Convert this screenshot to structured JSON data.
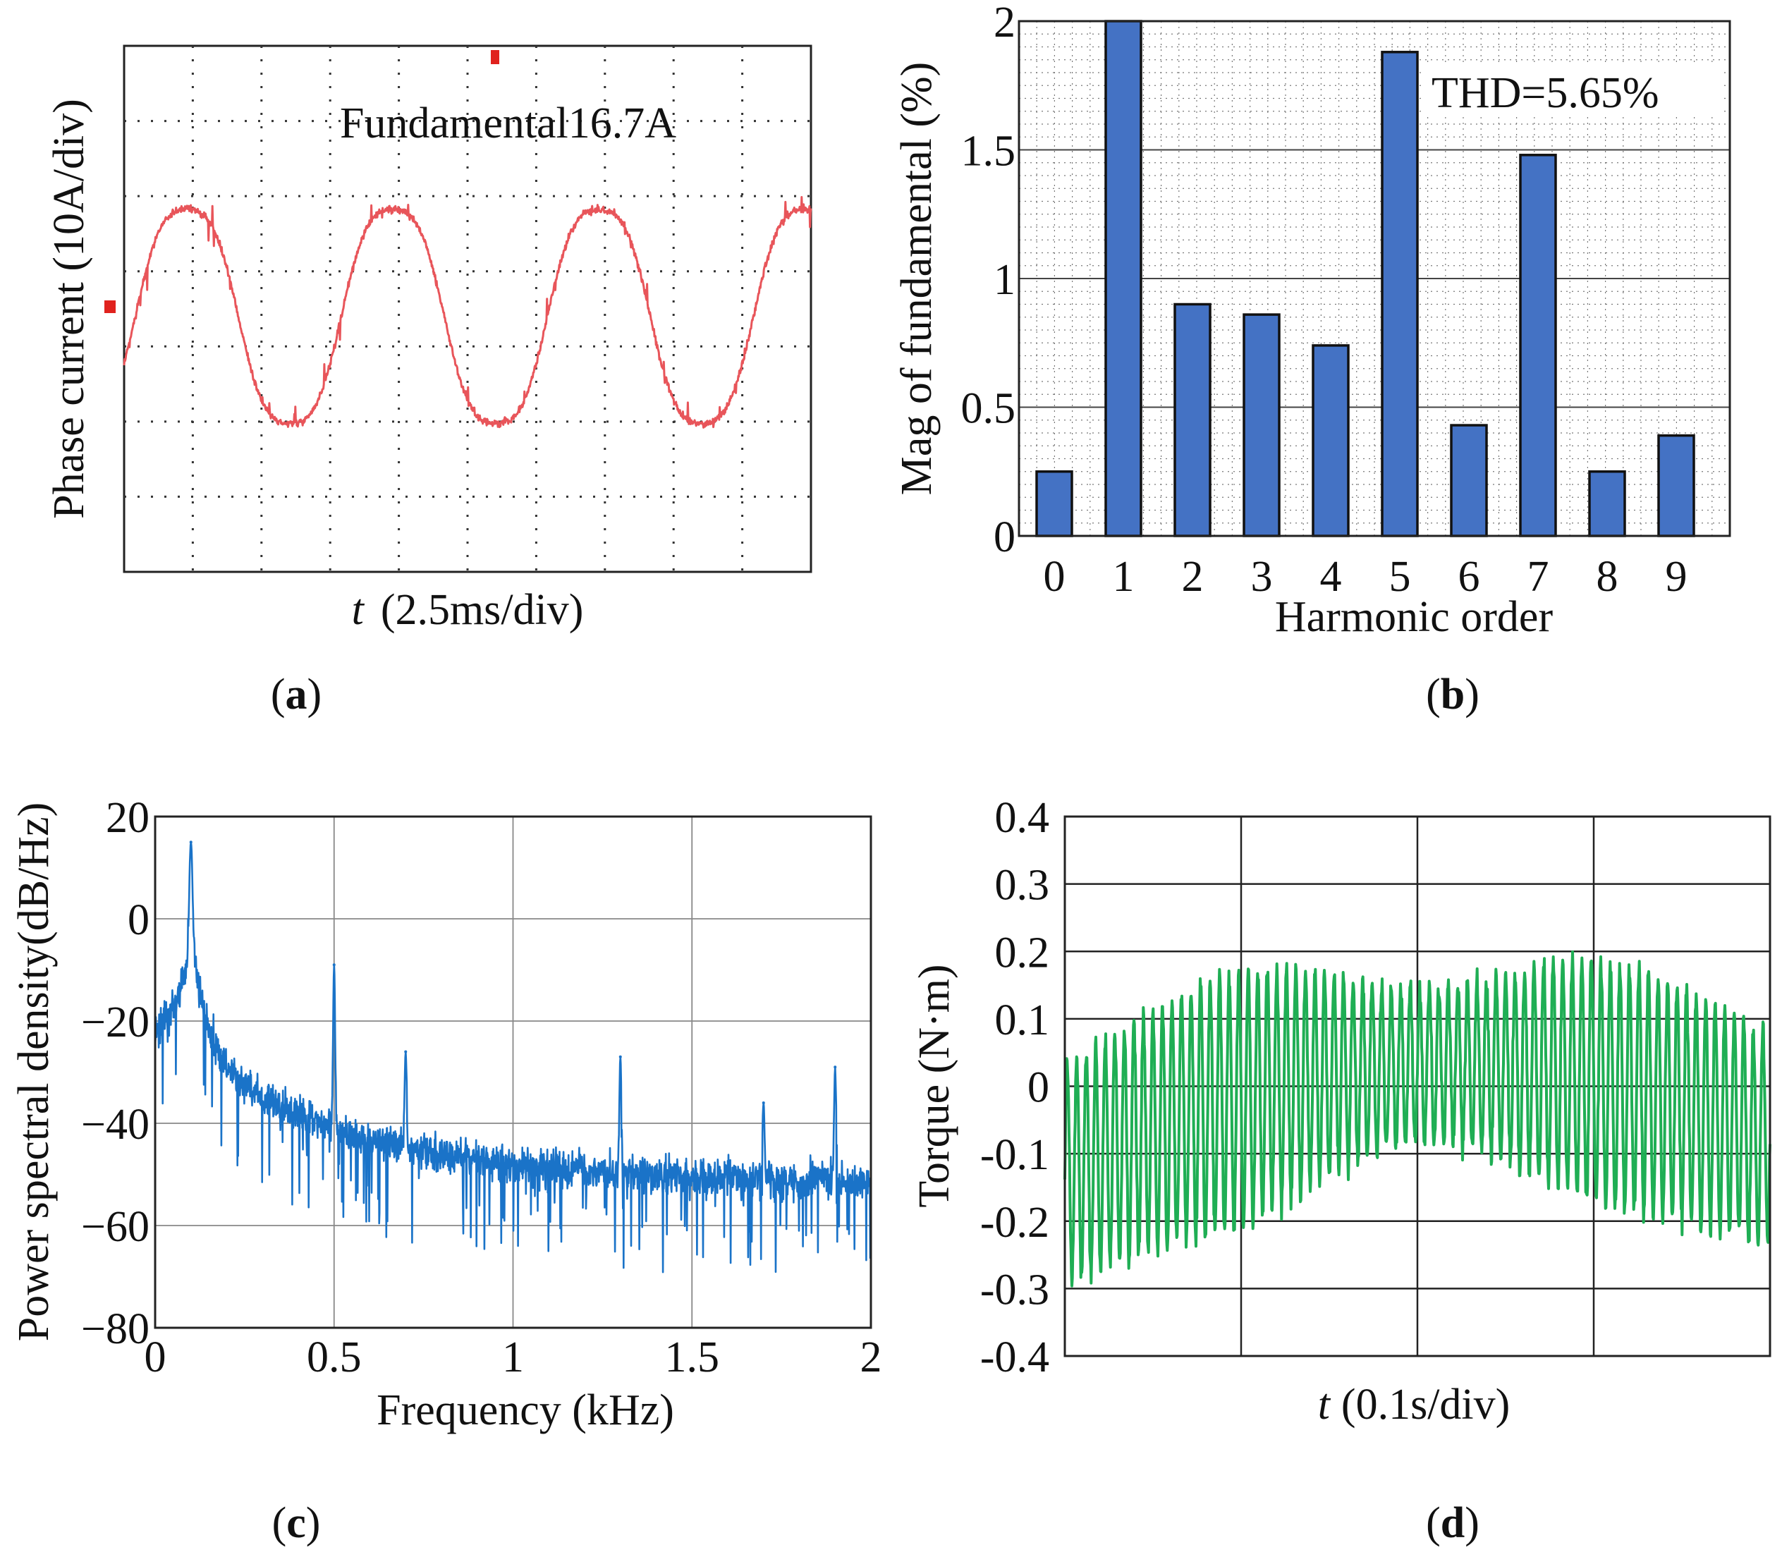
{
  "panels": [
    {
      "letter": "a"
    },
    {
      "letter": "b"
    },
    {
      "letter": "c"
    },
    {
      "letter": "d"
    }
  ],
  "colors": {
    "scope_trace": "#e8555a",
    "bar_fill": "#4472c4",
    "psd_line": "#1a73c8",
    "torque_line": "#1fae54",
    "scope_marker": "#e0221e"
  },
  "chart_data": [
    {
      "panel": "a",
      "type": "line",
      "title": "",
      "xlabel_var": "t",
      "xlabel_rest": "(2.5ms/div)",
      "ylabel": "Phase current (10A/div)",
      "annotation": "Fundamental16.7A",
      "divisions": {
        "x": 10,
        "y": 7
      },
      "y_scale_per_div": 10,
      "x_scale_per_div_ms": 2.5,
      "amplitude_divs": 1.55,
      "period_ms": 7.5,
      "x_range_ms": [
        0,
        25
      ],
      "grid": true
    },
    {
      "panel": "b",
      "type": "bar",
      "title": "",
      "categories": [
        "0",
        "1",
        "2",
        "3",
        "4",
        "5",
        "6",
        "7",
        "8",
        "9"
      ],
      "values": [
        0.25,
        2.0,
        0.9,
        0.86,
        0.74,
        1.88,
        0.43,
        1.48,
        0.25,
        0.39
      ],
      "xlabel": "Harmonic order",
      "ylabel": "Mag of fundamental (%)",
      "ylim": [
        0,
        2
      ],
      "yticks": [
        "0",
        "0.5",
        "1",
        "1.5",
        "2"
      ],
      "annotation": "THD=5.65%",
      "grid": true
    },
    {
      "panel": "c",
      "type": "line",
      "title": "",
      "xlabel": "Frequency (kHz)",
      "ylabel": "Power spectral density(dB/Hz)",
      "xlim": [
        0,
        2
      ],
      "ylim": [
        -80,
        20
      ],
      "xticks": [
        "0",
        "0.5",
        "1",
        "1.5",
        "2"
      ],
      "yticks": [
        "20",
        "0",
        "−20",
        "−40",
        "−60",
        "−80"
      ],
      "peaks": [
        {
          "x": 0.1,
          "y": 15
        },
        {
          "x": 0.5,
          "y": -9
        },
        {
          "x": 0.7,
          "y": -26
        },
        {
          "x": 1.3,
          "y": -27
        },
        {
          "x": 1.7,
          "y": -36
        },
        {
          "x": 1.9,
          "y": -29
        }
      ],
      "grid": true
    },
    {
      "panel": "d",
      "type": "line",
      "title": "",
      "xlabel_var": "t",
      "xlabel_rest": "(0.1s/div)",
      "ylabel": "Torque (N·m)",
      "ylim": [
        -0.4,
        0.4
      ],
      "yticks": [
        "0.4",
        "0.3",
        "0.2",
        "0.1",
        "0",
        "-0.1",
        "-0.2",
        "-0.3",
        "-0.4"
      ],
      "x_divisions": 4,
      "x_scale_per_div_s": 0.1,
      "ripple_amplitude": 0.19,
      "envelope_center": [
        -0.1,
        0.15,
        -0.05
      ],
      "grid": true
    }
  ]
}
